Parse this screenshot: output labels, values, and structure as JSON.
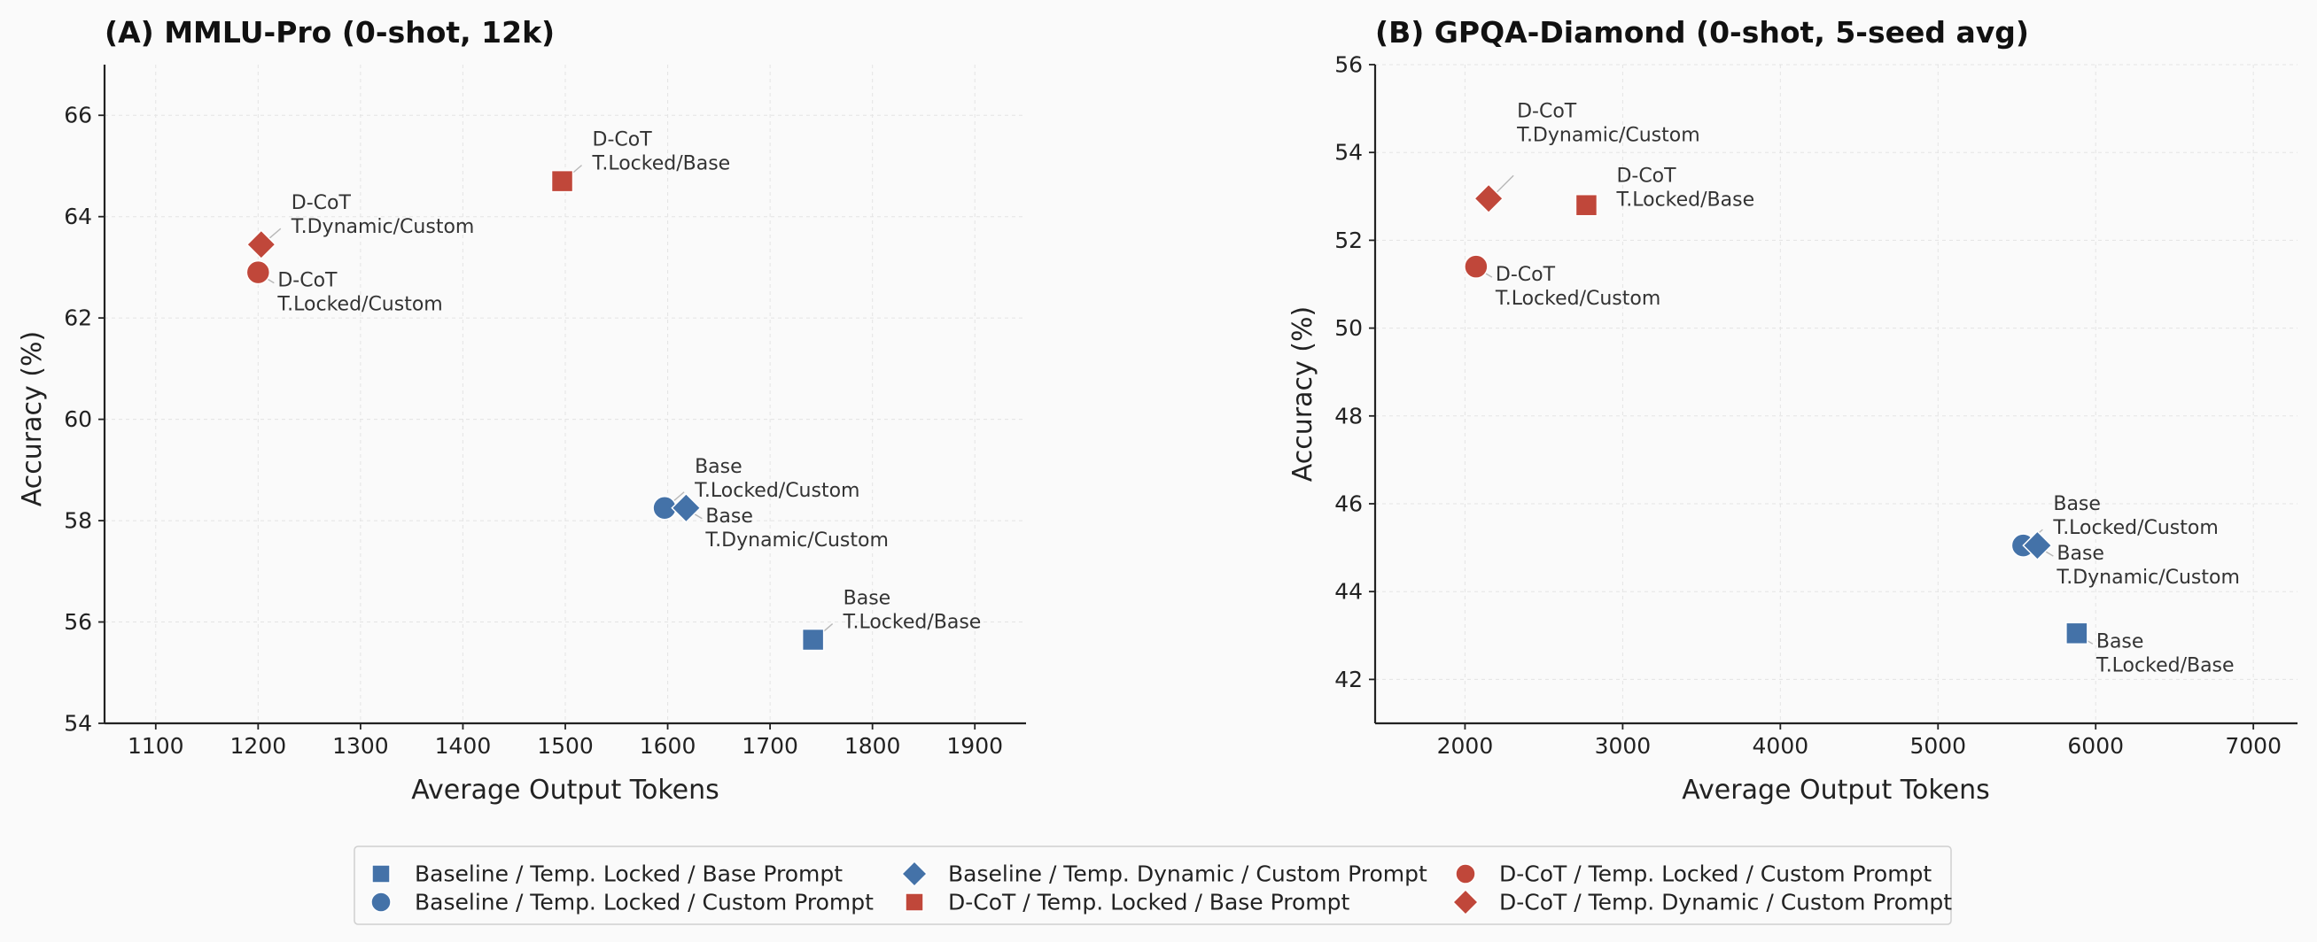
{
  "colors": {
    "baseline": "#4472a8",
    "dcot": "#c0473a",
    "axis": "#222222",
    "grid": "#e4e4e4",
    "leader": "#b8b8b8"
  },
  "chart_data": [
    {
      "type": "scatter",
      "title": "(A)  MMLU-Pro  (0-shot, 12k)",
      "xlabel": "Average Output Tokens",
      "ylabel": "Accuracy (%)",
      "xlim": [
        1050,
        1950
      ],
      "ylim": [
        54,
        67
      ],
      "xticks": [
        1100,
        1200,
        1300,
        1400,
        1500,
        1600,
        1700,
        1800,
        1900
      ],
      "yticks": [
        54,
        56,
        58,
        60,
        62,
        64,
        66
      ],
      "points": [
        {
          "series": 0,
          "x": 1742,
          "y": 55.65,
          "label": [
            "Base",
            "T.Locked/Base"
          ],
          "label_pos": "upper-right"
        },
        {
          "series": 1,
          "x": 1597,
          "y": 58.25,
          "label": [
            "Base",
            "T.Locked/Custom"
          ],
          "label_pos": "upper-right"
        },
        {
          "series": 2,
          "x": 1618,
          "y": 58.25,
          "label": [
            "Base",
            "T.Dynamic/Custom"
          ],
          "label_pos": "lower-right"
        },
        {
          "series": 3,
          "x": 1497,
          "y": 64.7,
          "label": [
            "D-CoT",
            "T.Locked/Base"
          ],
          "label_pos": "upper-right"
        },
        {
          "series": 4,
          "x": 1200,
          "y": 62.9,
          "label": [
            "D-CoT",
            "T.Locked/Custom"
          ],
          "label_pos": "lower-right"
        },
        {
          "series": 5,
          "x": 1203,
          "y": 63.45,
          "label": [
            "D-CoT",
            "T.Dynamic/Custom"
          ],
          "label_pos": "upper-right"
        }
      ]
    },
    {
      "type": "scatter",
      "title": "(B)  GPQA-Diamond  (0-shot, 5-seed avg)",
      "xlabel": "Average Output Tokens",
      "ylabel": "Accuracy (%)",
      "xlim": [
        1430,
        7280
      ],
      "ylim": [
        41,
        56
      ],
      "xticks": [
        2000,
        3000,
        4000,
        5000,
        6000,
        7000
      ],
      "yticks": [
        42,
        44,
        46,
        48,
        50,
        52,
        54,
        56
      ],
      "points": [
        {
          "series": 0,
          "x": 5880,
          "y": 43.05,
          "label": [
            "Base",
            "T.Locked/Base"
          ],
          "label_pos": "lower-right"
        },
        {
          "series": 1,
          "x": 5540,
          "y": 45.05,
          "label": [
            "Base",
            "T.Locked/Custom"
          ],
          "label_pos": "upper-right"
        },
        {
          "series": 2,
          "x": 5630,
          "y": 45.05,
          "label": [
            "Base",
            "T.Dynamic/Custom"
          ],
          "label_pos": "lower-right"
        },
        {
          "series": 3,
          "x": 2770,
          "y": 52.8,
          "label": [
            "D-CoT",
            "T.Locked/Base"
          ],
          "label_pos": "right"
        },
        {
          "series": 4,
          "x": 2070,
          "y": 51.4,
          "label": [
            "D-CoT",
            "T.Locked/Custom"
          ],
          "label_pos": "lower-right"
        },
        {
          "series": 5,
          "x": 2150,
          "y": 52.95,
          "label": [
            "D-CoT",
            "T.Dynamic/Custom"
          ],
          "label_pos": "far-upper-right"
        }
      ]
    }
  ],
  "legend": {
    "placement": "bottom-center",
    "items": [
      {
        "label": "Baseline / Temp. Locked / Base Prompt",
        "marker": "square",
        "color": "#4472a8"
      },
      {
        "label": "Baseline / Temp. Locked / Custom Prompt",
        "marker": "circle",
        "color": "#4472a8"
      },
      {
        "label": "Baseline / Temp. Dynamic / Custom Prompt",
        "marker": "diamond",
        "color": "#4472a8"
      },
      {
        "label": "D-CoT / Temp. Locked / Base Prompt",
        "marker": "square",
        "color": "#c0473a"
      },
      {
        "label": "D-CoT / Temp. Locked / Custom Prompt",
        "marker": "circle",
        "color": "#c0473a"
      },
      {
        "label": "D-CoT / Temp. Dynamic / Custom Prompt",
        "marker": "diamond",
        "color": "#c0473a"
      }
    ]
  }
}
